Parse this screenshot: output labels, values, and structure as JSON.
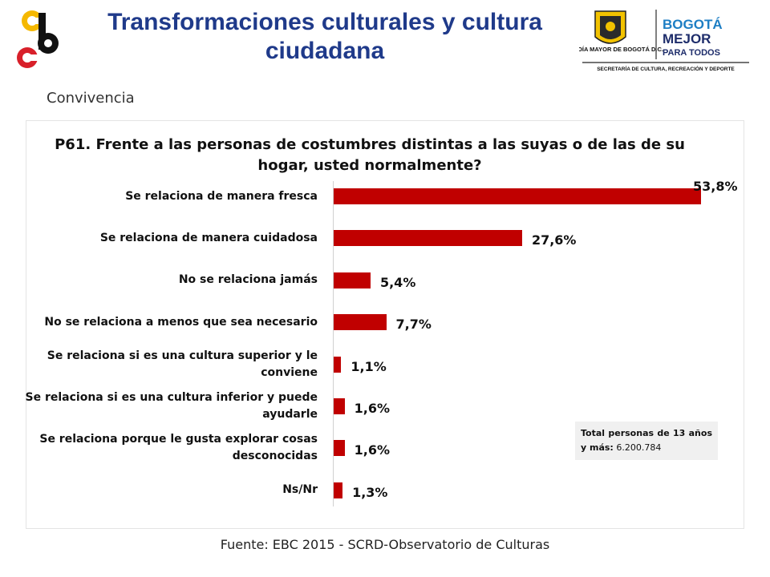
{
  "header": {
    "title": "Transformaciones culturales y cultura ciudadana",
    "alcaldia_text": "ALCALDÍA MAYOR DE BOGOTÁ D.C.",
    "brand_line1": "BOGOTÁ",
    "brand_line2": "MEJOR",
    "brand_line3": "PARA TODOS",
    "secretaria_text": "SECRETARÍA DE CULTURA, RECREACIÓN Y DEPORTE"
  },
  "subtitle": "Convivencia",
  "total": {
    "label": "Total personas de 13 años y más:",
    "value": "6.200.784"
  },
  "source": "Fuente: EBC 2015 - SCRD-Observatorio de Culturas",
  "colors": {
    "bar": "#c00000",
    "title": "#1f3a8a"
  },
  "chart_data": {
    "type": "bar",
    "orientation": "horizontal",
    "title": "P61. Frente a las personas de costumbres distintas a las suyas o de las de su hogar, usted normalmente?",
    "categories": [
      "Se relaciona de manera fresca",
      "Se relaciona de manera cuidadosa",
      "No se relaciona jamás",
      "No se relaciona a menos que sea necesario",
      "Se relaciona si es una cultura superior y le conviene",
      "Se relaciona si es una cultura inferior y puede ayudarle",
      "Se relaciona porque le gusta explorar cosas desconocidas",
      "Ns/Nr"
    ],
    "values": [
      53.8,
      27.6,
      5.4,
      7.7,
      1.1,
      1.6,
      1.6,
      1.3
    ],
    "value_labels": [
      "53,8%",
      "27,6%",
      "5,4%",
      "7,7%",
      "1,1%",
      "1,6%",
      "1,6%",
      "1,3%"
    ],
    "xlim": [
      0,
      53.8
    ],
    "grid": false,
    "legend": "none"
  }
}
